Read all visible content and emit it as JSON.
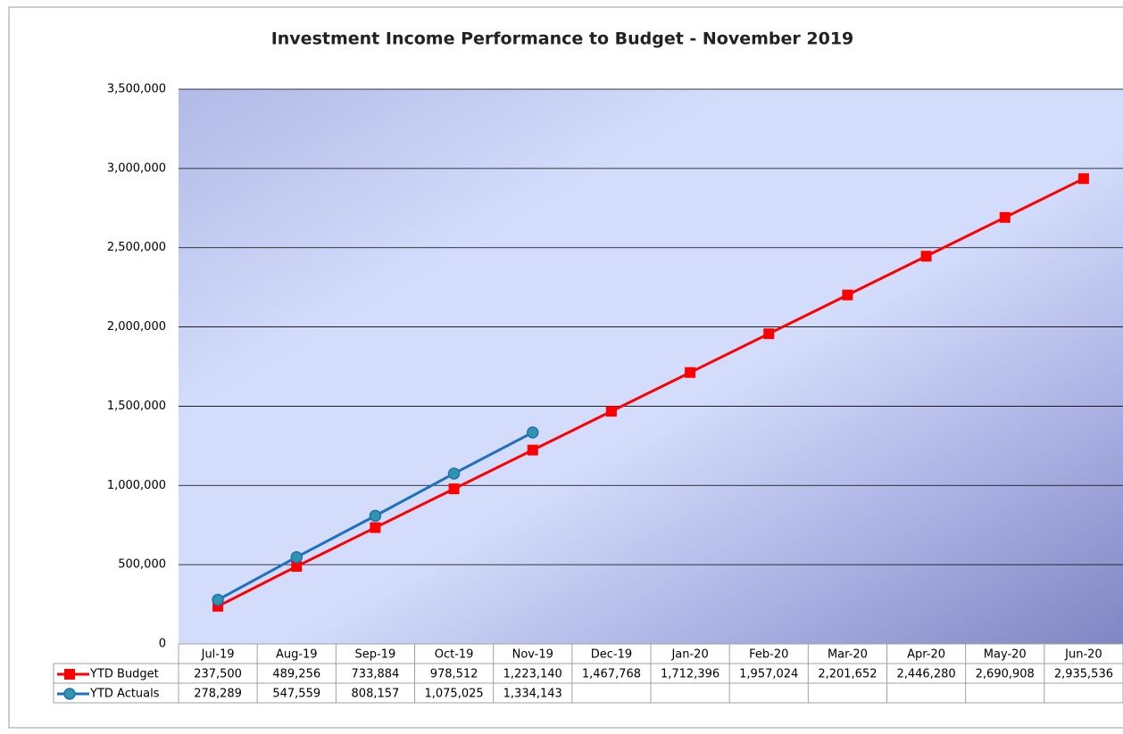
{
  "chart_data": {
    "type": "line",
    "title": "Investment Income Performance to Budget - November 2019",
    "categories": [
      "Jul-19",
      "Aug-19",
      "Sep-19",
      "Oct-19",
      "Nov-19",
      "Dec-19",
      "Jan-20",
      "Feb-20",
      "Mar-20",
      "Apr-20",
      "May-20",
      "Jun-20"
    ],
    "series": [
      {
        "name": "YTD Budget",
        "color": "#ff0000",
        "marker": "square",
        "marker_color": "#ff0000",
        "values": [
          237500,
          489256,
          733884,
          978512,
          1223140,
          1467768,
          1712396,
          1957024,
          2201652,
          2446280,
          2690908,
          2935536
        ],
        "value_labels": [
          "237,500",
          "489,256",
          "733,884",
          "978,512",
          "1,223,140",
          "1,467,768",
          "1,712,396",
          "1,957,024",
          "2,201,652",
          "2,446,280",
          "2,690,908",
          "2,935,536"
        ]
      },
      {
        "name": "YTD Actuals",
        "color": "#1f6fbf",
        "marker": "circle",
        "marker_color": "#2f95a8",
        "values": [
          278289,
          547559,
          808157,
          1075025,
          1334143,
          null,
          null,
          null,
          null,
          null,
          null,
          null
        ],
        "value_labels": [
          "278,289",
          "547,559",
          "808,157",
          "1,075,025",
          "1,334,143",
          null,
          null,
          null,
          null,
          null,
          null,
          null
        ]
      }
    ],
    "ylim": [
      0,
      3500000
    ],
    "yticks": [
      0,
      {
        "value": 500000,
        "label": "500,000"
      },
      {
        "value": 1000000,
        "label": "1,000,000"
      },
      {
        "value": 1500000,
        "label": "1,500,000"
      },
      {
        "value": 2000000,
        "label": "2,000,000"
      },
      {
        "value": 2500000,
        "label": "2,500,000"
      },
      {
        "value": 3000000,
        "label": "3,000,000"
      },
      {
        "value": 3500000,
        "label": "3,500,000"
      }
    ],
    "grid": true,
    "data_table": true
  }
}
